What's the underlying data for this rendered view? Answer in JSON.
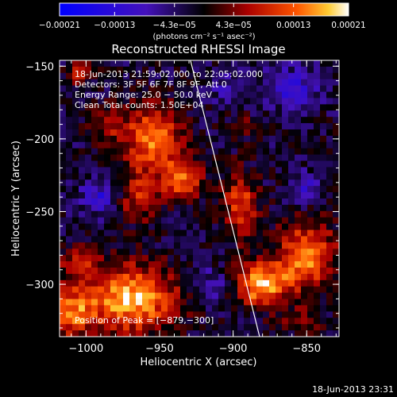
{
  "chart_data": {
    "type": "heatmap",
    "title": "Reconstructed RHESSI Image",
    "xlabel": "Heliocentric X (arcsec)",
    "ylabel": "Heliocentric Y (arcsec)",
    "xlim": [
      -1018,
      -828
    ],
    "ylim": [
      -336,
      -146
    ],
    "xticks": [
      -1000,
      -950,
      -900,
      -850
    ],
    "yticks": [
      -150,
      -200,
      -250,
      -300
    ],
    "xtick_labels": [
      "−1000",
      "−950",
      "−900",
      "−850"
    ],
    "ytick_labels": [
      "−150",
      "−200",
      "−250",
      "−300"
    ],
    "colorbar": {
      "ticks": [
        -0.00021,
        -0.00013,
        -4.3e-05,
        4.3e-05,
        0.00013,
        0.00021
      ],
      "tick_labels": [
        "−0.00021",
        "−0.00013",
        "−4.3e−05",
        "4.3e−05",
        "0.00013",
        "0.00021"
      ],
      "unit_label": "(photons cm⁻² s⁻¹ asec⁻²)",
      "range": [
        -0.00021,
        0.00021
      ]
    },
    "info_lines": [
      "18-Jun-2013 21:59:02.000 to 22:05:02.000",
      "Detectors: 3F 5F 6F 7F 8F 9F, Att 0",
      "Energy Range: 25.0 − 50.0 keV",
      "Clean     Total counts: 1.50E+04"
    ],
    "peak_label": "Position of Peak = [−879,−300]",
    "peak": [
      -879,
      -300
    ],
    "limb_line": [
      [
        -929,
        -146
      ],
      [
        -882,
        -336
      ]
    ],
    "sources": [
      {
        "x": -970,
        "y": -310,
        "amp": 1.15,
        "sx": 22,
        "sy": 16
      },
      {
        "x": -1010,
        "y": -320,
        "amp": 0.8,
        "sx": 10,
        "sy": 12
      },
      {
        "x": -955,
        "y": -200,
        "amp": 0.95,
        "sx": 14,
        "sy": 16
      },
      {
        "x": -935,
        "y": -228,
        "amp": 0.8,
        "sx": 10,
        "sy": 10
      },
      {
        "x": -965,
        "y": -240,
        "amp": 0.6,
        "sx": 10,
        "sy": 12
      },
      {
        "x": -985,
        "y": -190,
        "amp": 0.5,
        "sx": 8,
        "sy": 8
      },
      {
        "x": -1005,
        "y": -155,
        "amp": 0.55,
        "sx": 6,
        "sy": 6
      },
      {
        "x": -1005,
        "y": -285,
        "amp": 0.55,
        "sx": 10,
        "sy": 8
      },
      {
        "x": -880,
        "y": -300,
        "amp": 1.2,
        "sx": 12,
        "sy": 10
      },
      {
        "x": -850,
        "y": -280,
        "amp": 0.95,
        "sx": 14,
        "sy": 16
      },
      {
        "x": -895,
        "y": -245,
        "amp": 0.75,
        "sx": 8,
        "sy": 16
      },
      {
        "x": -855,
        "y": -325,
        "amp": 0.4,
        "sx": 10,
        "sy": 6
      },
      {
        "x": -895,
        "y": -190,
        "amp": 0.3,
        "sx": 6,
        "sy": 6
      }
    ],
    "negatives": [
      {
        "x": -990,
        "y": -240,
        "amp": 0.55,
        "sx": 10,
        "sy": 8
      },
      {
        "x": -860,
        "y": -165,
        "amp": 0.5,
        "sx": 14,
        "sy": 10
      },
      {
        "x": -850,
        "y": -235,
        "amp": 0.4,
        "sx": 8,
        "sy": 8
      },
      {
        "x": -915,
        "y": -300,
        "amp": 0.35,
        "sx": 8,
        "sy": 8
      },
      {
        "x": -905,
        "y": -165,
        "amp": 0.3,
        "sx": 8,
        "sy": 8
      }
    ]
  },
  "timestamp": "18-Jun-2013 23:31"
}
